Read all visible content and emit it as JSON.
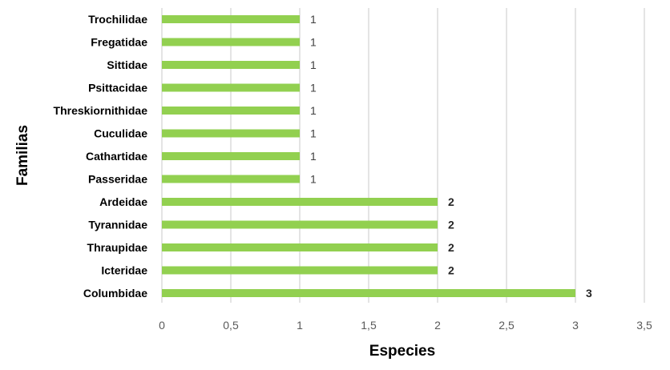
{
  "chart_data": {
    "type": "bar",
    "orientation": "horizontal",
    "categories": [
      "Trochilidae",
      "Fregatidae",
      "Sittidae",
      "Psittacidae",
      "Threskiornithidae",
      "Cuculidae",
      "Cathartidae",
      "Passeridae",
      "Ardeidae",
      "Tyrannidae",
      "Thraupidae",
      "Icteridae",
      "Columbidae"
    ],
    "values": [
      1,
      1,
      1,
      1,
      1,
      1,
      1,
      1,
      2,
      2,
      2,
      2,
      3
    ],
    "data_labels": [
      "1",
      "1",
      "1",
      "1",
      "1",
      "1",
      "1",
      "1",
      "2",
      "2",
      "2",
      "2",
      "3"
    ],
    "bold_data_labels": [
      false,
      false,
      false,
      false,
      false,
      false,
      false,
      false,
      true,
      true,
      true,
      true,
      true
    ],
    "title": "",
    "xlabel": "Especies",
    "ylabel": "Familias",
    "xlim": [
      0,
      3.5
    ],
    "x_ticks": [
      0,
      0.5,
      1,
      1.5,
      2,
      2.5,
      3,
      3.5
    ],
    "x_tick_labels": [
      "0",
      "0,5",
      "1",
      "1,5",
      "2",
      "2,5",
      "3",
      "3,5"
    ],
    "grid": "vertical",
    "legend": "none",
    "colors": {
      "bar": "#92D050",
      "grid": "#D9D9D9",
      "data_label": "#404040"
    }
  }
}
